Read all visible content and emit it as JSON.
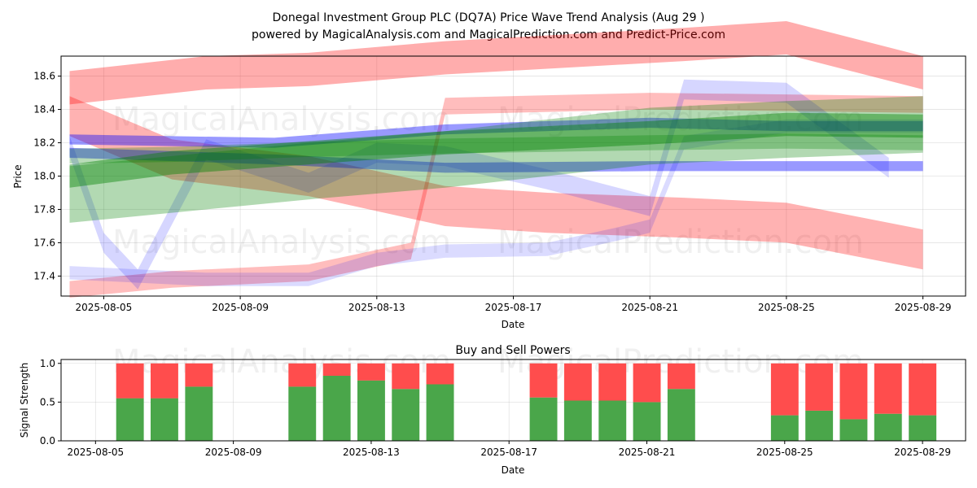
{
  "header": {
    "title_line1": "Donegal Investment Group PLC (DQ7A) Price Wave Trend Analysis (Aug 29 )",
    "title_line2": "powered by MagicalAnalysis.com and MagicalPrediction.com and Predict-Price.com"
  },
  "watermarks": [
    "MagicalAnalysis.com",
    "MagicalPrediction.com"
  ],
  "colors": {
    "red": "#ff0000",
    "blue": "#0000ff",
    "green": "#008000",
    "buy": "#4aa64a",
    "sell": "#ff4d4d"
  },
  "chart_data": [
    {
      "type": "area",
      "xlabel": "Date",
      "ylabel": "Price",
      "xlim": [
        "2025-08-03 18:00",
        "2025-08-30 06:00"
      ],
      "ylim": [
        17.28,
        18.72
      ],
      "x_ticks": [
        "2025-08-05",
        "2025-08-09",
        "2025-08-13",
        "2025-08-17",
        "2025-08-21",
        "2025-08-25",
        "2025-08-29"
      ],
      "y_ticks": [
        17.4,
        17.6,
        17.8,
        18.0,
        18.2,
        18.4,
        18.6
      ],
      "grid": true,
      "series": [
        {
          "color": "red",
          "opacity": 0.32,
          "width": 0.2,
          "x": [
            "2025-08-04",
            "2025-08-08",
            "2025-08-11",
            "2025-08-15",
            "2025-08-22",
            "2025-08-25",
            "2025-08-29"
          ],
          "y": [
            18.53,
            18.62,
            18.64,
            18.71,
            18.79,
            18.83,
            18.62
          ]
        },
        {
          "color": "red",
          "opacity": 0.3,
          "width": 0.24,
          "x": [
            "2025-08-04",
            "2025-08-07",
            "2025-08-11",
            "2025-08-15",
            "2025-08-18",
            "2025-08-22",
            "2025-08-25",
            "2025-08-29"
          ],
          "y": [
            18.36,
            18.1,
            18.0,
            17.82,
            17.78,
            17.75,
            17.72,
            17.56
          ]
        },
        {
          "color": "red",
          "opacity": 0.26,
          "width": 0.1,
          "x": [
            "2025-08-04",
            "2025-08-07",
            "2025-08-11",
            "2025-08-14",
            "2025-08-15",
            "2025-08-21",
            "2025-08-25",
            "2025-08-29"
          ],
          "y": [
            17.32,
            17.38,
            17.42,
            17.55,
            18.42,
            18.45,
            18.44,
            18.43
          ]
        },
        {
          "color": "blue",
          "opacity": 0.16,
          "width": 0.12,
          "x": [
            "2025-08-04",
            "2025-08-05",
            "2025-08-06",
            "2025-08-08",
            "2025-08-11",
            "2025-08-13",
            "2025-08-15",
            "2025-08-18",
            "2025-08-21",
            "2025-08-22",
            "2025-08-25",
            "2025-08-28"
          ],
          "y": [
            18.18,
            17.6,
            17.38,
            18.16,
            17.96,
            18.14,
            18.12,
            17.98,
            17.82,
            18.52,
            18.5,
            18.05
          ]
        },
        {
          "color": "blue",
          "opacity": 0.14,
          "width": 0.08,
          "x": [
            "2025-08-04",
            "2025-08-08",
            "2025-08-11",
            "2025-08-13",
            "2025-08-15",
            "2025-08-18",
            "2025-08-20",
            "2025-08-21",
            "2025-08-22",
            "2025-08-25",
            "2025-08-29"
          ],
          "y": [
            17.42,
            17.38,
            17.38,
            17.5,
            17.55,
            17.56,
            17.65,
            17.7,
            18.2,
            18.3,
            18.3
          ]
        },
        {
          "color": "blue",
          "opacity": 0.4,
          "width": 0.06,
          "x": [
            "2025-08-04",
            "2025-08-10",
            "2025-08-15",
            "2025-08-21",
            "2025-08-25",
            "2025-08-29"
          ],
          "y": [
            18.22,
            18.2,
            18.28,
            18.32,
            18.3,
            18.3
          ]
        },
        {
          "color": "blue",
          "opacity": 0.4,
          "width": 0.06,
          "x": [
            "2025-08-04",
            "2025-08-10",
            "2025-08-15",
            "2025-08-21",
            "2025-08-25",
            "2025-08-29"
          ],
          "y": [
            18.14,
            18.1,
            18.05,
            18.06,
            18.06,
            18.06
          ]
        },
        {
          "color": "green",
          "opacity": 0.3,
          "width": 0.34,
          "x": [
            "2025-08-04",
            "2025-08-08",
            "2025-08-11",
            "2025-08-15",
            "2025-08-21",
            "2025-08-25",
            "2025-08-29"
          ],
          "y": [
            17.89,
            17.97,
            18.03,
            18.1,
            18.24,
            18.28,
            18.31
          ]
        },
        {
          "color": "green",
          "opacity": 0.42,
          "width": 0.14,
          "x": [
            "2025-08-04",
            "2025-08-07",
            "2025-08-11",
            "2025-08-15",
            "2025-08-21",
            "2025-08-25",
            "2025-08-29"
          ],
          "y": [
            18.0,
            18.08,
            18.14,
            18.2,
            18.26,
            18.31,
            18.3
          ]
        },
        {
          "color": "green",
          "opacity": 0.28,
          "width": 0.09,
          "x": [
            "2025-08-04",
            "2025-08-07",
            "2025-08-11",
            "2025-08-15",
            "2025-08-21",
            "2025-08-25",
            "2025-08-29"
          ],
          "y": [
            18.12,
            18.13,
            18.16,
            18.18,
            18.2,
            18.21,
            18.2
          ]
        }
      ]
    },
    {
      "type": "bar",
      "title": "Buy and Sell Powers",
      "xlabel": "Date",
      "ylabel": "Signal Strength",
      "xlim": [
        "2025-08-04",
        "2025-08-30 06:00"
      ],
      "ylim": [
        0,
        1.05
      ],
      "x_ticks": [
        "2025-08-05",
        "2025-08-09",
        "2025-08-13",
        "2025-08-17",
        "2025-08-21",
        "2025-08-25",
        "2025-08-29"
      ],
      "y_ticks": [
        0.0,
        0.5,
        1.0
      ],
      "grid": true,
      "x": [
        "2025-08-06",
        "2025-08-07",
        "2025-08-08",
        "2025-08-11",
        "2025-08-12",
        "2025-08-13",
        "2025-08-14",
        "2025-08-15",
        "2025-08-18",
        "2025-08-19",
        "2025-08-20",
        "2025-08-21",
        "2025-08-22",
        "2025-08-25",
        "2025-08-26",
        "2025-08-27",
        "2025-08-28",
        "2025-08-29"
      ],
      "series": [
        {
          "color": "buy",
          "values": [
            0.55,
            0.55,
            0.7,
            0.7,
            0.84,
            0.78,
            0.67,
            0.73,
            0.56,
            0.52,
            0.52,
            0.5,
            0.67,
            0.33,
            0.39,
            0.28,
            0.35,
            0.33
          ]
        },
        {
          "color": "sell",
          "values": [
            0.45,
            0.45,
            0.3,
            0.3,
            0.16,
            0.22,
            0.33,
            0.27,
            0.44,
            0.48,
            0.48,
            0.5,
            0.33,
            0.67,
            0.61,
            0.72,
            0.65,
            0.67
          ]
        }
      ]
    }
  ]
}
